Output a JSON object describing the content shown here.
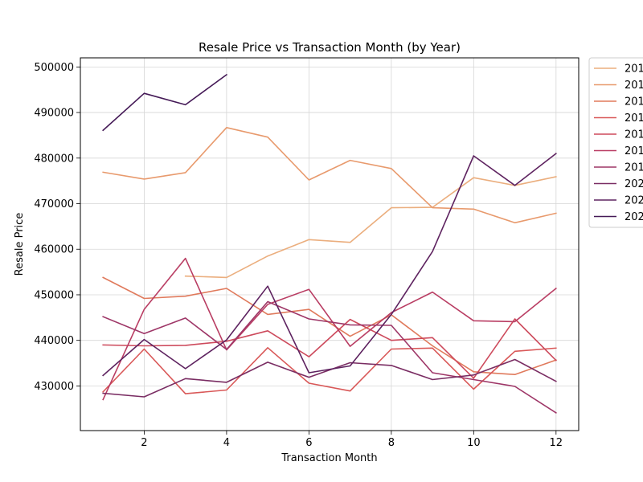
{
  "chart_data": {
    "type": "line",
    "title": "Resale Price vs Transaction Month (by Year)",
    "xlabel": "Transaction Month",
    "ylabel": "Resale Price",
    "xlim": [
      0.45,
      12.55
    ],
    "ylim": [
      420200,
      502000
    ],
    "x_ticks": [
      2,
      4,
      6,
      8,
      10,
      12
    ],
    "y_ticks": [
      430000,
      440000,
      450000,
      460000,
      470000,
      480000,
      490000,
      500000
    ],
    "x_tick_labels": [
      "2",
      "4",
      "6",
      "8",
      "10",
      "12"
    ],
    "y_tick_labels": [
      "430000",
      "440000",
      "450000",
      "460000",
      "470000",
      "480000",
      "490000",
      "500000"
    ],
    "grid": true,
    "legend_position": "outside-right",
    "series": [
      {
        "name": "201",
        "color": "#ebae7e",
        "x": [
          3,
          4,
          5,
          6,
          7,
          8,
          9,
          10,
          11,
          12
        ],
        "values": [
          454100,
          453800,
          458500,
          462100,
          461500,
          469100,
          469200,
          475700,
          474000,
          475900
        ]
      },
      {
        "name": "201",
        "color": "#e89a6d",
        "x": [
          1,
          2,
          3,
          4,
          5,
          6,
          7,
          8,
          9,
          10,
          11,
          12
        ],
        "values": [
          476900,
          475400,
          476800,
          486700,
          484600,
          475200,
          479500,
          477700,
          469100,
          468800,
          465800,
          467900
        ]
      },
      {
        "name": "201",
        "color": "#e07a5c",
        "x": [
          1,
          2,
          3,
          4,
          5,
          6,
          7,
          8,
          9,
          10,
          11,
          12
        ],
        "values": [
          453800,
          449200,
          449700,
          451400,
          445700,
          446800,
          440900,
          445600,
          438800,
          433100,
          432500,
          435700
        ]
      },
      {
        "name": "201",
        "color": "#d95858",
        "x": [
          1,
          2,
          3,
          4,
          5,
          6,
          7,
          8,
          9,
          10,
          11,
          12
        ],
        "values": [
          428700,
          438100,
          428300,
          429100,
          438400,
          430600,
          428900,
          438100,
          438300,
          429300,
          437600,
          438300
        ]
      },
      {
        "name": "201",
        "color": "#cd4a5c",
        "x": [
          1,
          2,
          3,
          4,
          5,
          6,
          7,
          8,
          9,
          10,
          11,
          12
        ],
        "values": [
          439000,
          438800,
          438900,
          439800,
          442100,
          436400,
          444600,
          440000,
          440600,
          431700,
          444700,
          435600
        ]
      },
      {
        "name": "201",
        "color": "#b93d63",
        "x": [
          1,
          2,
          3,
          4,
          5,
          6,
          7,
          8,
          9,
          10,
          11,
          12
        ],
        "values": [
          427000,
          446800,
          458000,
          437900,
          447900,
          451200,
          438700,
          446100,
          450600,
          444300,
          444100,
          451400
        ]
      },
      {
        "name": "201",
        "color": "#9e3667",
        "x": [
          1,
          2,
          3,
          4,
          5,
          6,
          7,
          8,
          9,
          10,
          11,
          12
        ],
        "values": [
          445200,
          441500,
          444900,
          438000,
          448500,
          444700,
          443400,
          443300,
          432900,
          431400,
          429900,
          424100
        ]
      },
      {
        "name": "202",
        "color": "#7a2d63",
        "x": [
          1,
          2,
          3,
          4,
          5,
          6,
          7,
          8,
          9,
          10,
          11,
          12
        ],
        "values": [
          428400,
          427600,
          431600,
          430800,
          435200,
          431900,
          435100,
          434500,
          431400,
          432400,
          435800,
          431000
        ]
      },
      {
        "name": "202",
        "color": "#5e2360",
        "x": [
          1,
          2,
          3,
          4,
          5,
          6,
          7,
          8,
          9,
          10,
          11,
          12
        ],
        "values": [
          432300,
          440200,
          433800,
          440100,
          451900,
          432900,
          434400,
          445700,
          459500,
          480500,
          474000,
          481000
        ]
      },
      {
        "name": "202",
        "color": "#451a57",
        "x": [
          1,
          2,
          3,
          4
        ],
        "values": [
          486100,
          494200,
          491700,
          498300
        ]
      }
    ]
  }
}
